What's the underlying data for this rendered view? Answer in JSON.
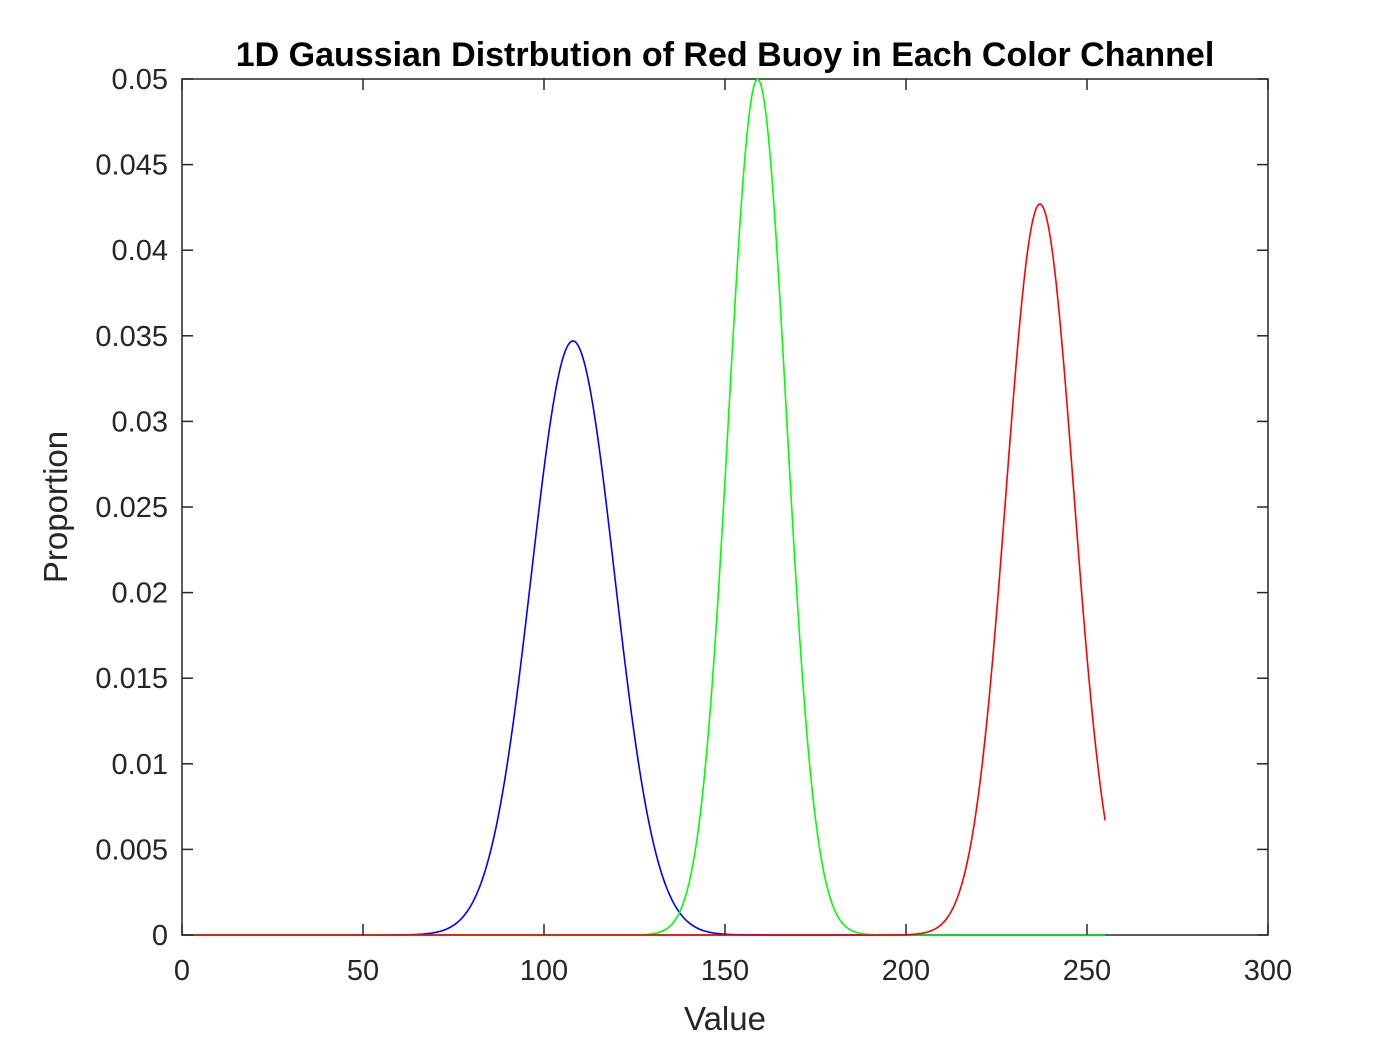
{
  "chart_data": {
    "type": "line",
    "title": "1D Gaussian Distrbution of Red Buoy in Each Color Channel",
    "xlabel": "Value",
    "ylabel": "Proportion",
    "xlim": [
      0,
      300
    ],
    "ylim": [
      0,
      0.05
    ],
    "x_ticks": [
      "0",
      "50",
      "100",
      "150",
      "200",
      "250",
      "300"
    ],
    "y_ticks": [
      "0",
      "0.005",
      "0.01",
      "0.015",
      "0.02",
      "0.025",
      "0.03",
      "0.035",
      "0.04",
      "0.045",
      "0.05"
    ],
    "grid": false,
    "legend": "none",
    "x_range_plotted": [
      0,
      255
    ],
    "series": [
      {
        "color": "#0000ff",
        "mean": 108,
        "std": 11.5,
        "peak": 0.0347
      },
      {
        "color": "#00ff00",
        "mean": 159,
        "std": 8.0,
        "peak": 0.05
      },
      {
        "color": "#ff0000",
        "mean": 237,
        "std": 9.35,
        "peak": 0.0427
      }
    ]
  }
}
